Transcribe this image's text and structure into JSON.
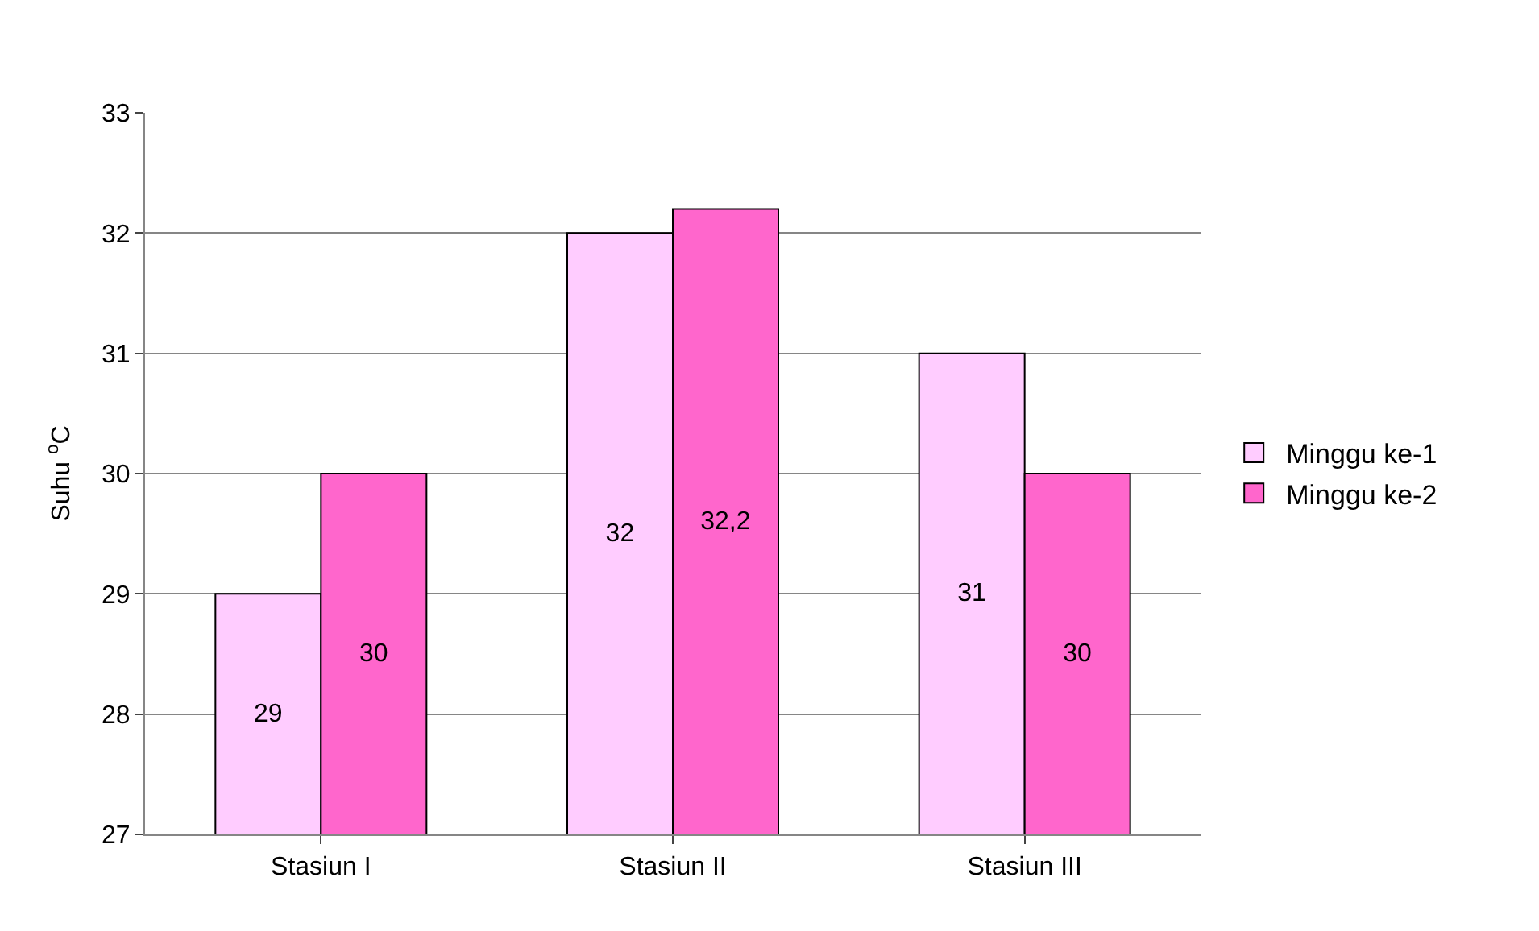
{
  "chart_data": {
    "type": "bar",
    "ylabel": "Suhu $^{o}$C",
    "categories": [
      "Stasiun I",
      "Stasiun II",
      "Stasiun III"
    ],
    "series": [
      {
        "name": "Minggu ke-1",
        "color": "#ffccff",
        "values": [
          29,
          32,
          31
        ],
        "value_labels": [
          "29",
          "32",
          "31"
        ]
      },
      {
        "name": "Minggu ke-2",
        "color": "#ff66cc",
        "values": [
          30,
          32.2,
          30
        ],
        "value_labels": [
          "30",
          "32,2",
          "30"
        ]
      }
    ],
    "ylim": [
      27,
      33
    ],
    "yticks": [
      27,
      28,
      29,
      30,
      31,
      32,
      33
    ],
    "grid": "y",
    "legend": "right"
  }
}
